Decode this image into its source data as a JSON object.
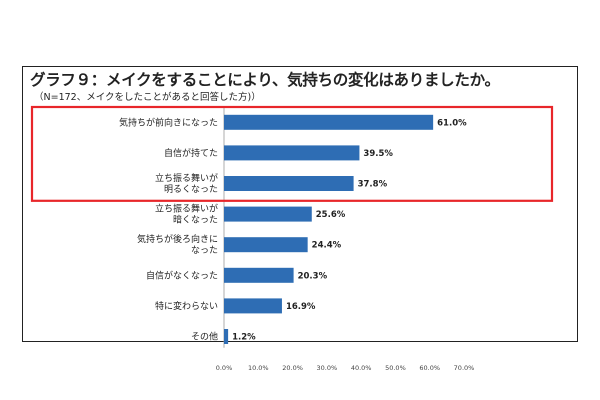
{
  "title": "グラフ９：メイクをすることにより、気持ちの変化はありましたか。",
  "subtitle": "（N=172、メイクをしたことがあると回答した方)）",
  "chart_data": {
    "type": "bar",
    "orientation": "horizontal",
    "categories": [
      [
        "気持ちが前向きになった"
      ],
      [
        "自信が持てた"
      ],
      [
        "立ち振る舞いが",
        "明るくなった"
      ],
      [
        "立ち振る舞いが",
        "暗くなった"
      ],
      [
        "気持ちが後ろ向きに",
        "なった"
      ],
      [
        "自信がなくなった"
      ],
      [
        "特に変わらない"
      ],
      [
        "その他"
      ]
    ],
    "values": [
      61.0,
      39.5,
      37.8,
      25.6,
      24.4,
      20.3,
      16.9,
      1.2
    ],
    "value_labels": [
      "61.0%",
      "39.5%",
      "37.8%",
      "25.6%",
      "24.4%",
      "20.3%",
      "16.9%",
      "1.2%"
    ],
    "xlim": [
      0,
      70
    ],
    "x_ticks": [
      "0.0%",
      "10.0%",
      "20.0%",
      "30.0%",
      "40.0%",
      "50.0%",
      "60.0%",
      "70.0%"
    ],
    "highlight_rows": [
      0,
      1,
      2
    ],
    "bar_color": "#2e6db4",
    "highlight_color": "#e8262a"
  }
}
